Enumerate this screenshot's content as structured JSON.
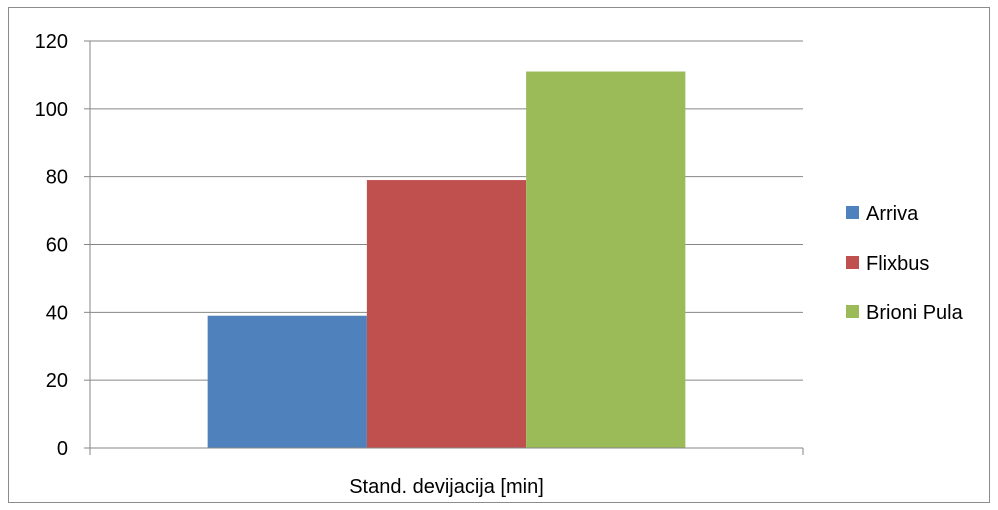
{
  "chart_data": {
    "type": "bar",
    "categories": [
      "Stand. devijacija [min]"
    ],
    "series": [
      {
        "name": "Arriva",
        "values": [
          39
        ],
        "color": "#4F81BD"
      },
      {
        "name": "Flixbus",
        "values": [
          79
        ],
        "color": "#C0504D"
      },
      {
        "name": "Brioni Pula",
        "values": [
          111
        ],
        "color": "#9BBB59"
      }
    ],
    "title": "",
    "xlabel": "",
    "ylabel": "",
    "ylim": [
      0,
      120
    ],
    "yticks": [
      0,
      20,
      40,
      60,
      80,
      100,
      120
    ],
    "grid": true,
    "legend": "right"
  }
}
